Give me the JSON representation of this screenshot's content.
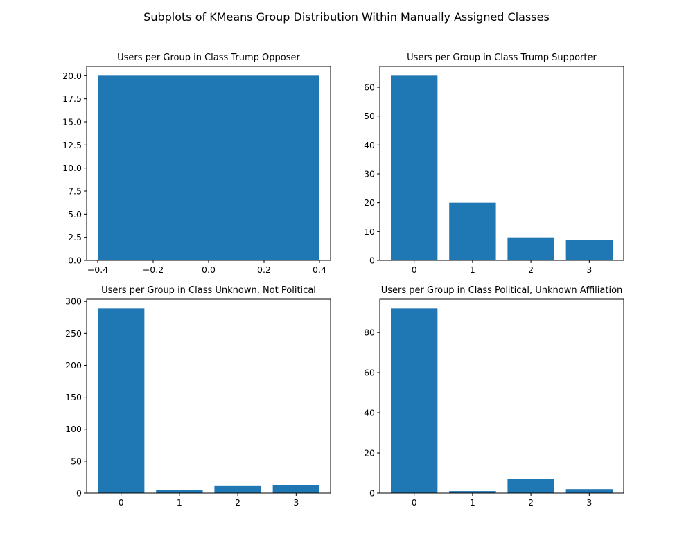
{
  "figure": {
    "title": "Subplots of KMeans Group Distribution Within Manually Assigned Classes"
  },
  "chart_data": [
    {
      "type": "bar",
      "title": "Users per Group in Class Trump Opposer",
      "x": [
        0
      ],
      "values": [
        20
      ],
      "bar_width": 0.8,
      "xlim": [
        -0.44,
        0.44
      ],
      "ylim": [
        0,
        21
      ],
      "xticks": [
        -0.4,
        -0.2,
        0.0,
        0.2,
        0.4
      ],
      "xtick_labels": [
        "−0.4",
        "−0.2",
        "0.0",
        "0.2",
        "0.4"
      ],
      "yticks": [
        0,
        2.5,
        5,
        7.5,
        10,
        12.5,
        15,
        17.5,
        20
      ],
      "ytick_labels": [
        "0.0",
        "2.5",
        "5.0",
        "7.5",
        "10.0",
        "12.5",
        "15.0",
        "17.5",
        "20.0"
      ],
      "color": "#1f77b4",
      "grid": false
    },
    {
      "type": "bar",
      "title": "Users per Group in Class Trump Supporter",
      "x": [
        0,
        1,
        2,
        3
      ],
      "values": [
        64,
        20,
        8,
        7
      ],
      "bar_width": 0.8,
      "xlim": [
        -0.59,
        3.59
      ],
      "ylim": [
        0,
        67.2
      ],
      "xticks": [
        0,
        1,
        2,
        3
      ],
      "xtick_labels": [
        "0",
        "1",
        "2",
        "3"
      ],
      "yticks": [
        0,
        10,
        20,
        30,
        40,
        50,
        60
      ],
      "ytick_labels": [
        "0",
        "10",
        "20",
        "30",
        "40",
        "50",
        "60"
      ],
      "color": "#1f77b4",
      "grid": false
    },
    {
      "type": "bar",
      "title": "Users per Group in Class Unknown, Not Political",
      "x": [
        0,
        1,
        2,
        3
      ],
      "values": [
        289,
        5,
        11,
        12
      ],
      "bar_width": 0.8,
      "xlim": [
        -0.59,
        3.59
      ],
      "ylim": [
        0,
        303.45
      ],
      "xticks": [
        0,
        1,
        2,
        3
      ],
      "xtick_labels": [
        "0",
        "1",
        "2",
        "3"
      ],
      "yticks": [
        0,
        50,
        100,
        150,
        200,
        250,
        300
      ],
      "ytick_labels": [
        "0",
        "50",
        "100",
        "150",
        "200",
        "250",
        "300"
      ],
      "color": "#1f77b4",
      "grid": false
    },
    {
      "type": "bar",
      "title": "Users per Group in Class Political, Unknown Affiliation",
      "x": [
        0,
        1,
        2,
        3
      ],
      "values": [
        92,
        1,
        7,
        2
      ],
      "bar_width": 0.8,
      "xlim": [
        -0.59,
        3.59
      ],
      "ylim": [
        0,
        96.6
      ],
      "xticks": [
        0,
        1,
        2,
        3
      ],
      "xtick_labels": [
        "0",
        "1",
        "2",
        "3"
      ],
      "yticks": [
        0,
        20,
        40,
        60,
        80
      ],
      "ytick_labels": [
        "0",
        "20",
        "40",
        "60",
        "80"
      ],
      "color": "#1f77b4",
      "grid": false
    }
  ]
}
